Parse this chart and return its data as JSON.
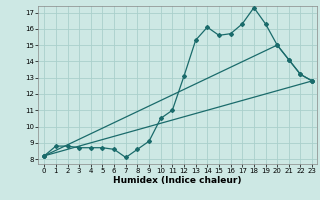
{
  "xlabel": "Humidex (Indice chaleur)",
  "bg_color": "#cde8e4",
  "grid_color": "#aad0cc",
  "line_color": "#1a6b6b",
  "xlim": [
    -0.5,
    23.4
  ],
  "ylim": [
    7.7,
    17.4
  ],
  "yticks": [
    8,
    9,
    10,
    11,
    12,
    13,
    14,
    15,
    16,
    17
  ],
  "xticks": [
    0,
    1,
    2,
    3,
    4,
    5,
    6,
    7,
    8,
    9,
    10,
    11,
    12,
    13,
    14,
    15,
    16,
    17,
    18,
    19,
    20,
    21,
    22,
    23
  ],
  "line1_x": [
    0,
    1,
    2,
    3,
    4,
    5,
    6,
    7,
    8,
    9,
    10,
    11,
    12,
    13,
    14,
    15,
    16,
    17,
    18,
    19,
    20,
    21,
    22,
    23
  ],
  "line1_y": [
    8.2,
    8.8,
    8.8,
    8.7,
    8.7,
    8.7,
    8.6,
    8.1,
    8.6,
    9.1,
    10.5,
    11.0,
    13.1,
    15.3,
    16.1,
    15.6,
    15.7,
    16.3,
    17.3,
    16.3,
    15.0,
    14.1,
    13.2,
    12.8
  ],
  "line2_x": [
    0,
    23
  ],
  "line2_y": [
    8.2,
    12.8
  ],
  "line3_x": [
    0,
    20,
    21,
    22,
    23
  ],
  "line3_y": [
    8.2,
    15.0,
    14.1,
    13.2,
    12.8
  ],
  "xlabel_fontsize": 6.5,
  "tick_fontsize": 5.0
}
